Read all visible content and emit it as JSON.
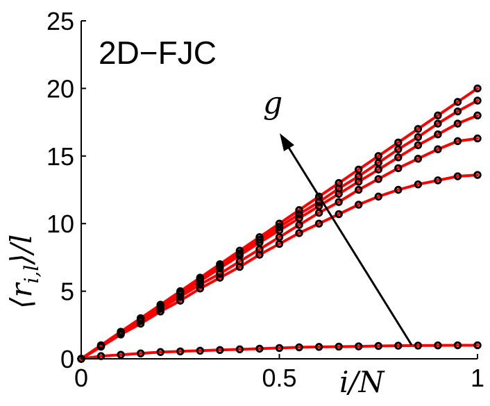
{
  "chart_data": {
    "type": "line",
    "title": "2D−FJC",
    "xlabel": "i/N",
    "ylabel": "⟨r",
    "ylabel_sub": "i,l",
    "ylabel_tail": "⟩/l",
    "annotation": "g",
    "xlim": [
      0,
      1
    ],
    "ylim": [
      0,
      25
    ],
    "xticks": [
      "0",
      "0.5",
      "1"
    ],
    "yticks": [
      "0",
      "5",
      "10",
      "15",
      "20",
      "25"
    ],
    "grid": false,
    "line_color": "#ff0000",
    "marker_color": "#000000",
    "series": [
      {
        "x": [
          0,
          0.05,
          0.1,
          0.15,
          0.2,
          0.25,
          0.3,
          0.35,
          0.4,
          0.45,
          0.5,
          0.55,
          0.6,
          0.65,
          0.7,
          0.75,
          0.8,
          0.85,
          0.9,
          0.95,
          1.0
        ],
        "values": [
          0,
          0.2,
          0.3,
          0.4,
          0.5,
          0.55,
          0.6,
          0.65,
          0.7,
          0.75,
          0.8,
          0.85,
          0.88,
          0.9,
          0.92,
          0.95,
          0.97,
          0.98,
          0.99,
          1.0,
          1.0
        ]
      },
      {
        "x": [
          0,
          0.05,
          0.1,
          0.15,
          0.2,
          0.25,
          0.3,
          0.35,
          0.4,
          0.45,
          0.5,
          0.55,
          0.6,
          0.65,
          0.7,
          0.75,
          0.8,
          0.85,
          0.9,
          0.95,
          1.0
        ],
        "values": [
          0,
          0.9,
          1.8,
          2.6,
          3.5,
          4.3,
          5.2,
          6.0,
          6.8,
          7.7,
          8.5,
          9.3,
          10.0,
          10.7,
          11.4,
          12.0,
          12.5,
          12.9,
          13.2,
          13.5,
          13.6
        ]
      },
      {
        "x": [
          0,
          0.05,
          0.1,
          0.15,
          0.2,
          0.25,
          0.3,
          0.35,
          0.4,
          0.45,
          0.5,
          0.55,
          0.6,
          0.65,
          0.7,
          0.75,
          0.8,
          0.85,
          0.9,
          0.95,
          1.0
        ],
        "values": [
          0,
          0.95,
          1.9,
          2.8,
          3.7,
          4.6,
          5.5,
          6.3,
          7.2,
          8.1,
          9.0,
          9.9,
          10.8,
          11.6,
          12.5,
          13.3,
          14.1,
          14.8,
          15.5,
          16.1,
          16.3
        ]
      },
      {
        "x": [
          0,
          0.05,
          0.1,
          0.15,
          0.2,
          0.25,
          0.3,
          0.35,
          0.4,
          0.45,
          0.5,
          0.55,
          0.6,
          0.65,
          0.7,
          0.75,
          0.8,
          0.85,
          0.9,
          0.95,
          1.0
        ],
        "values": [
          0,
          0.98,
          1.95,
          2.9,
          3.85,
          4.8,
          5.75,
          6.7,
          7.65,
          8.6,
          9.5,
          10.4,
          11.3,
          12.2,
          13.1,
          14.0,
          14.9,
          15.8,
          16.6,
          17.4,
          18.0
        ]
      },
      {
        "x": [
          0,
          0.05,
          0.1,
          0.15,
          0.2,
          0.25,
          0.3,
          0.35,
          0.4,
          0.45,
          0.5,
          0.55,
          0.6,
          0.65,
          0.7,
          0.75,
          0.8,
          0.85,
          0.9,
          0.95,
          1.0
        ],
        "values": [
          0,
          1.0,
          2.0,
          3.0,
          3.95,
          4.9,
          5.9,
          6.85,
          7.8,
          8.8,
          9.75,
          10.7,
          11.6,
          12.6,
          13.5,
          14.5,
          15.5,
          16.4,
          17.4,
          18.3,
          19.1
        ]
      },
      {
        "x": [
          0,
          0.05,
          0.1,
          0.15,
          0.2,
          0.25,
          0.3,
          0.35,
          0.4,
          0.45,
          0.5,
          0.55,
          0.6,
          0.65,
          0.7,
          0.75,
          0.8,
          0.85,
          0.9,
          0.95,
          1.0
        ],
        "values": [
          0,
          1.0,
          2.0,
          3.0,
          4.0,
          5.0,
          6.0,
          7.0,
          8.0,
          9.0,
          10.0,
          11.0,
          12.0,
          13.0,
          14.0,
          15.0,
          16.0,
          17.0,
          18.0,
          19.0,
          20.0
        ]
      }
    ]
  }
}
